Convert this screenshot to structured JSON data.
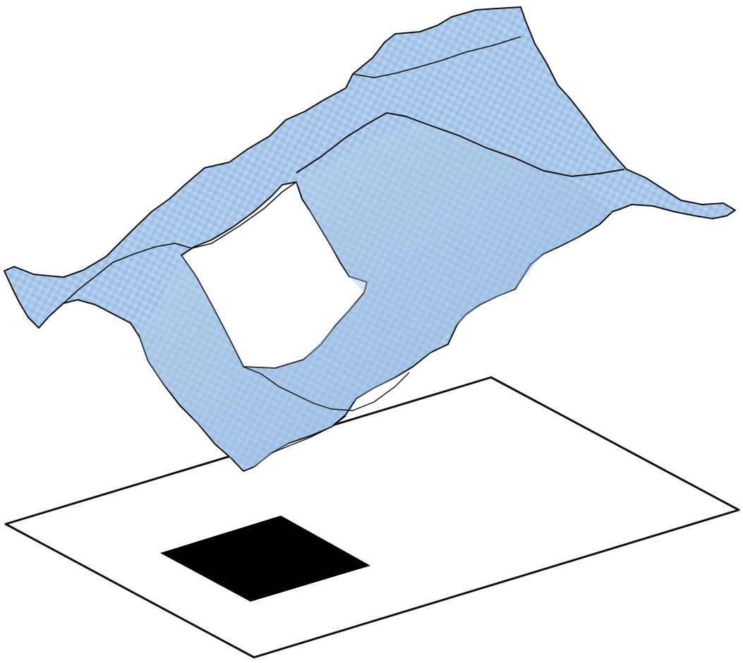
{
  "figure": {
    "colors": {
      "background": "#ffffff",
      "surface_fill": "#a9c8ea",
      "surface_shade": "#8fb2dc",
      "surface_highlight": "#c9ddf3",
      "outline": "#111111",
      "plane_fill": "#ffffff",
      "obstacle_fill": "#000000"
    },
    "elements": {
      "surface": "voxelized-isosurface",
      "plane": "ground-plane",
      "obstacle": "black-square-footprint"
    }
  }
}
